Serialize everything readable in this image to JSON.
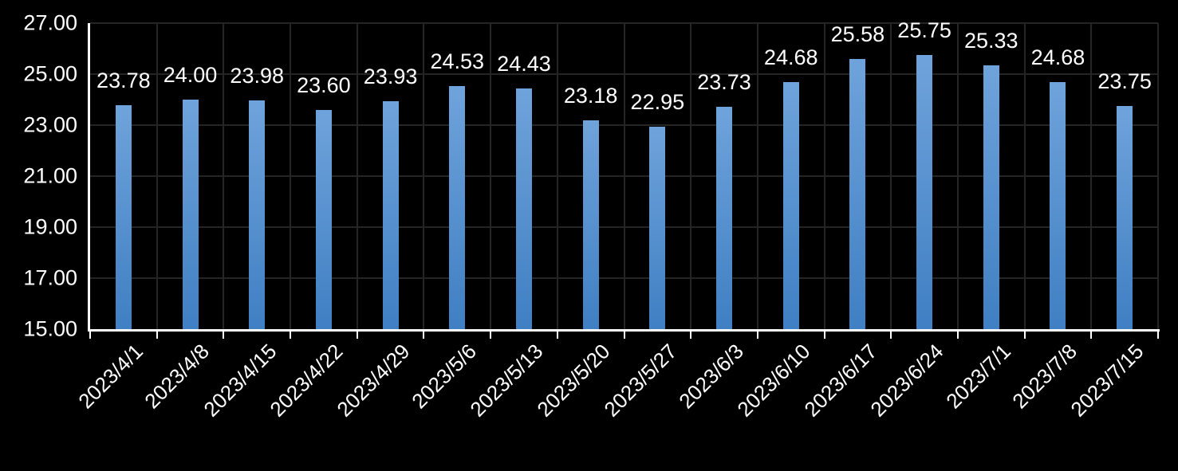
{
  "chart_data": {
    "type": "bar",
    "title": "",
    "xlabel": "",
    "ylabel": "",
    "categories": [
      "2023/4/1",
      "2023/4/8",
      "2023/4/15",
      "2023/4/22",
      "2023/4/29",
      "2023/5/6",
      "2023/5/13",
      "2023/5/20",
      "2023/5/27",
      "2023/6/3",
      "2023/6/10",
      "2023/6/17",
      "2023/6/24",
      "2023/7/1",
      "2023/7/8",
      "2023/7/15"
    ],
    "values": [
      23.78,
      24.0,
      23.98,
      23.6,
      23.93,
      24.53,
      24.43,
      23.18,
      22.95,
      23.73,
      24.68,
      25.58,
      25.75,
      25.33,
      24.68,
      23.75
    ],
    "value_labels": [
      "23.78",
      "24.00",
      "23.98",
      "23.60",
      "23.93",
      "24.53",
      "24.43",
      "23.18",
      "22.95",
      "23.73",
      "24.68",
      "25.58",
      "25.75",
      "25.33",
      "24.68",
      "23.75"
    ],
    "ylim": [
      15,
      27
    ],
    "y_tick_labels": [
      "27.00",
      "25.00",
      "23.00",
      "21.00",
      "19.00",
      "17.00",
      "15.00"
    ],
    "grid": true,
    "legend": "none",
    "colors": {
      "background": "#000000",
      "bar_top": "#6fa3db",
      "bar_bottom": "#3f7fc3",
      "gridline": "#252525",
      "axis": "#ffffff",
      "text": "#ffffff"
    }
  }
}
